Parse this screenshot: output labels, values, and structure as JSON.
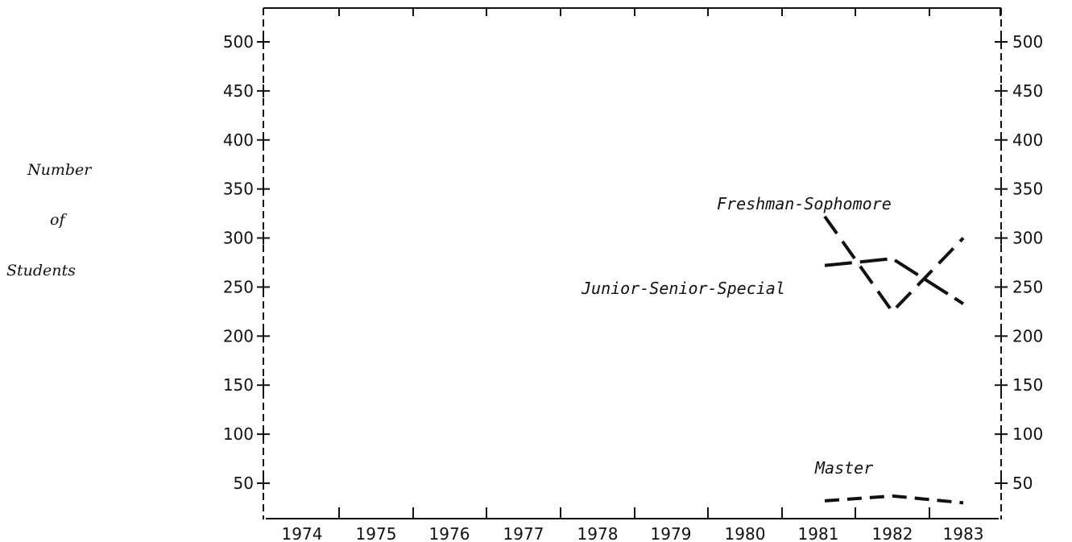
{
  "chart_data": {
    "type": "line",
    "ylabel_lines": [
      "Number",
      "of",
      "Students"
    ],
    "xlabel": "",
    "title": "",
    "categories": [
      "1974",
      "1975",
      "1976",
      "1977",
      "1978",
      "1979",
      "1980",
      "1981",
      "1982",
      "1983"
    ],
    "ylim": [
      25,
      525
    ],
    "y_ticks": [
      50,
      100,
      150,
      200,
      250,
      300,
      350,
      400,
      450,
      500
    ],
    "series": [
      {
        "name": "Freshman-Sophomore",
        "x": [
          "1981",
          "1982",
          "1983"
        ],
        "values": [
          322,
          225,
          300
        ]
      },
      {
        "name": "Junior-Senior-Special",
        "x": [
          "1981",
          "1982",
          "1983"
        ],
        "values": [
          272,
          279,
          233
        ]
      },
      {
        "name": "Master",
        "x": [
          "1981",
          "1982",
          "1983"
        ],
        "values": [
          32,
          37,
          30
        ]
      }
    ],
    "grid": false,
    "legend": "none"
  }
}
